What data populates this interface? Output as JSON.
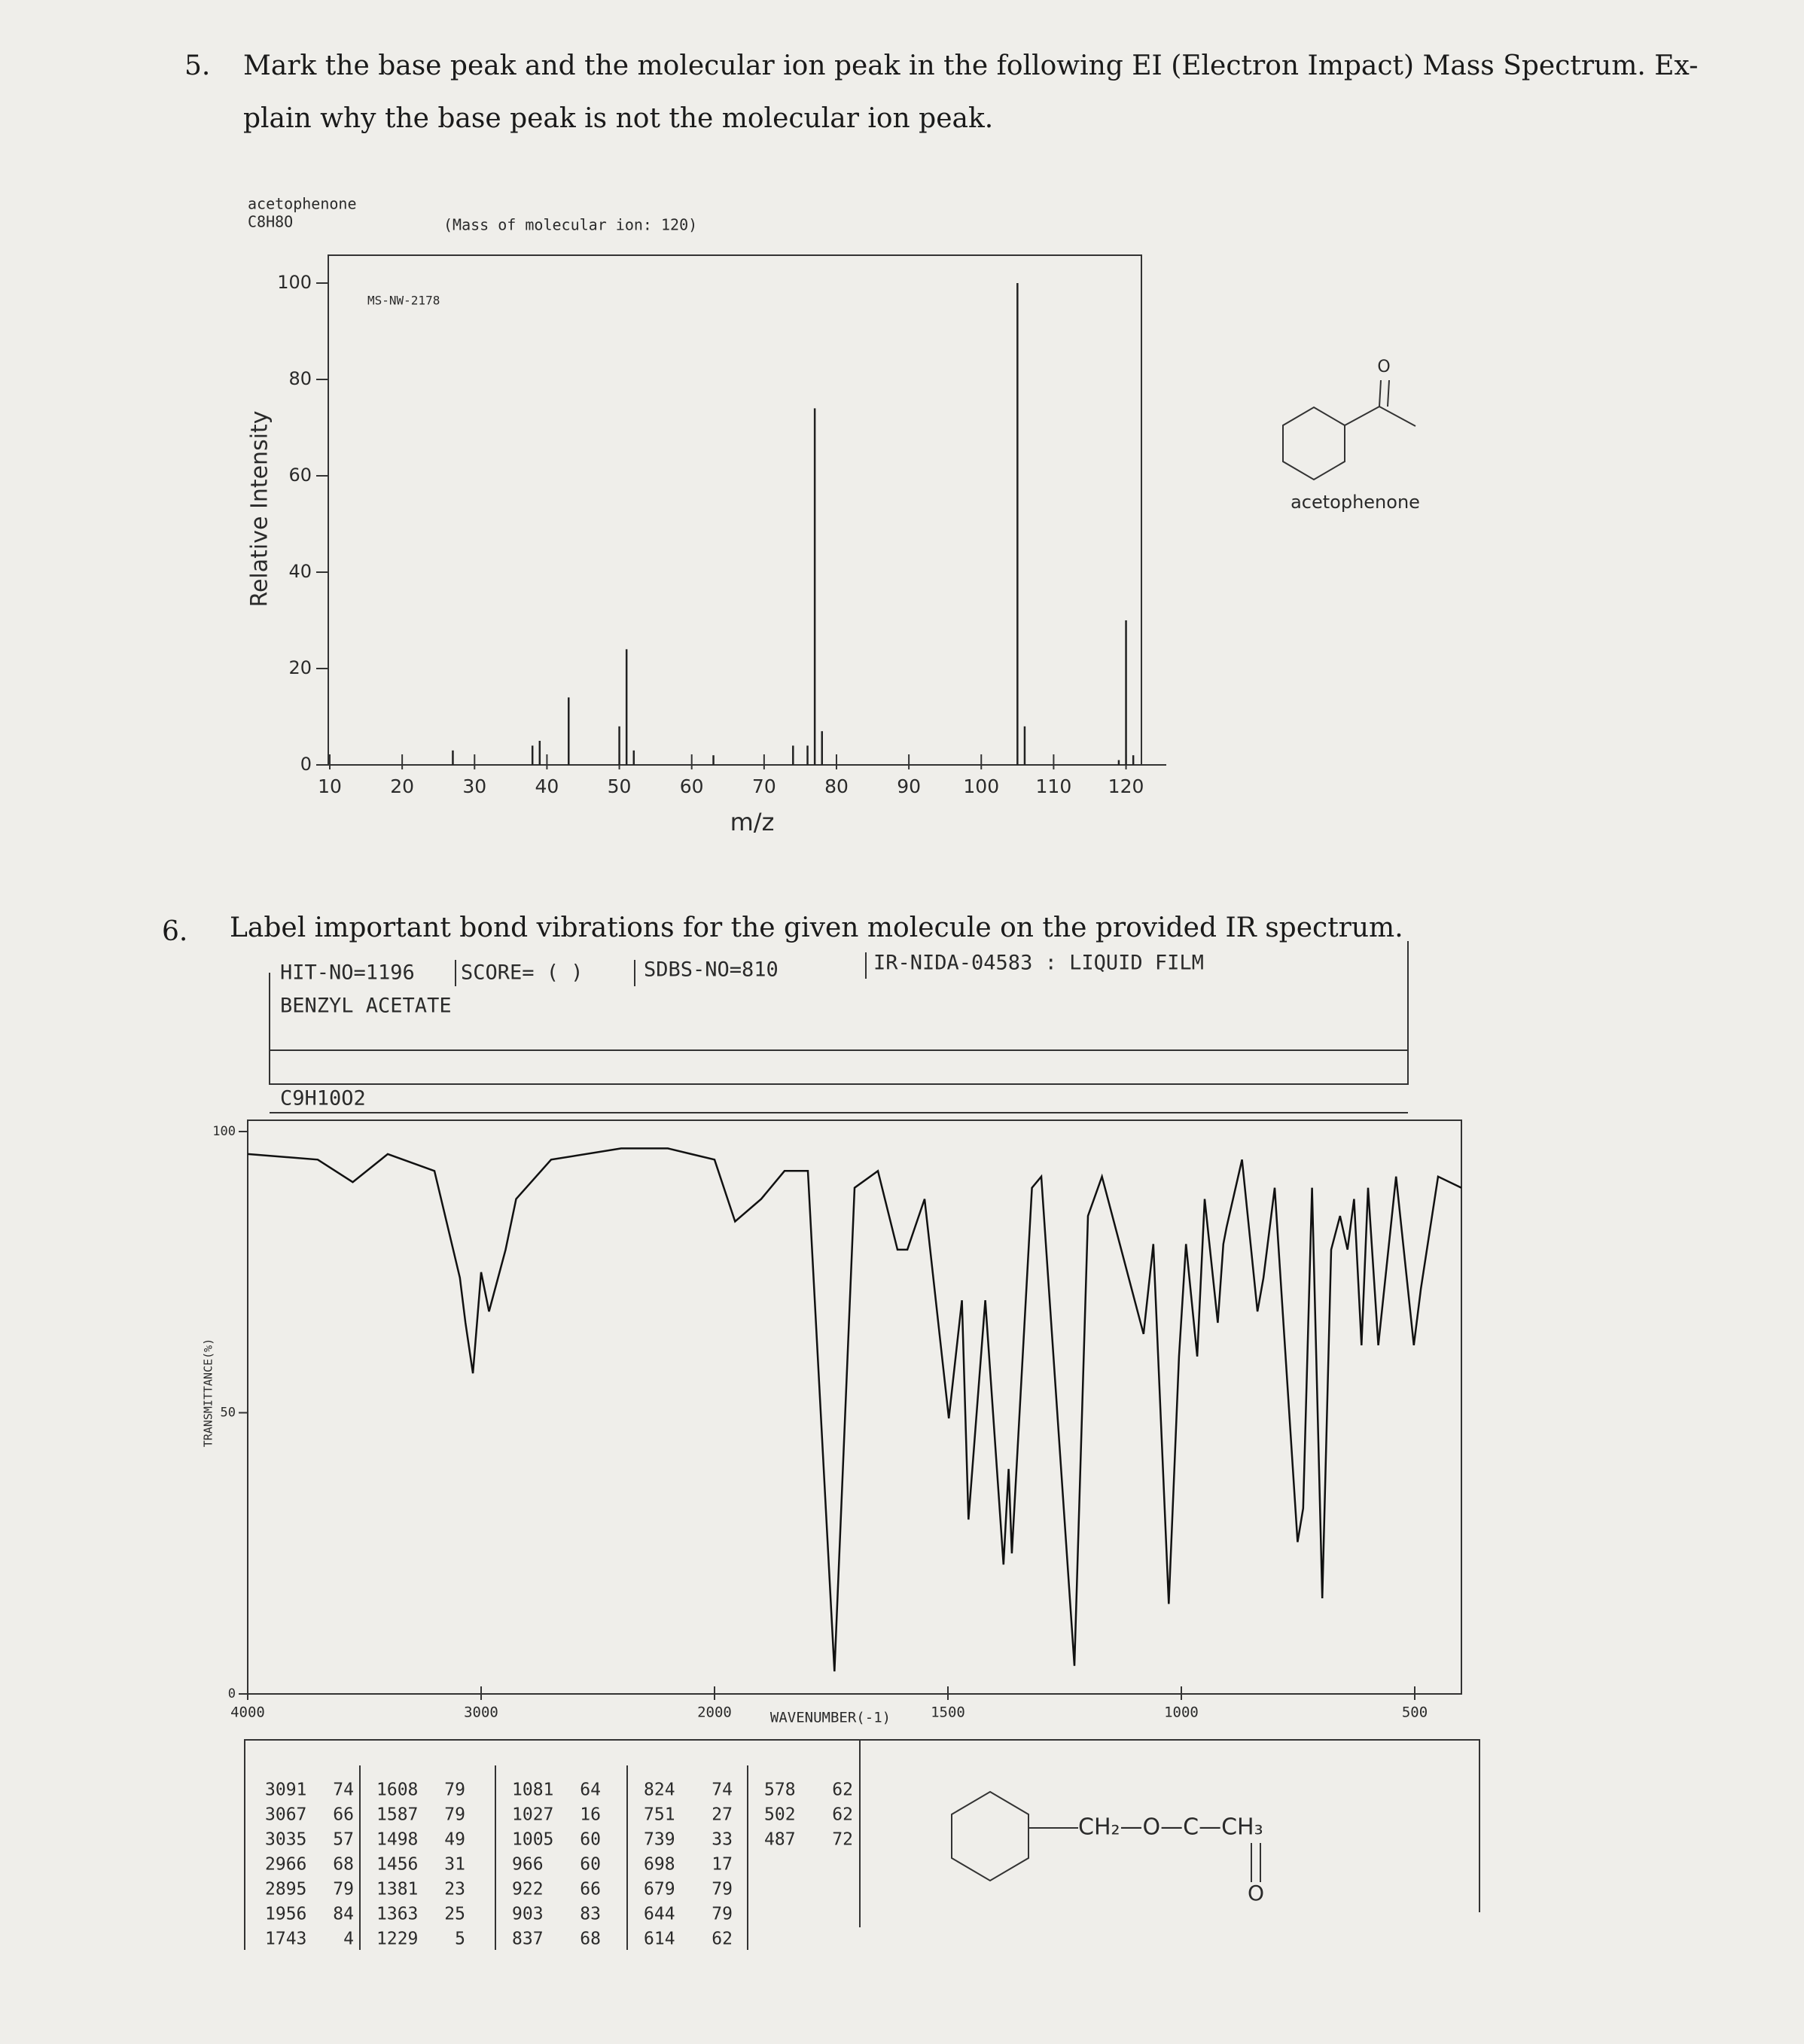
{
  "questions": [
    {
      "number": "5.",
      "lines": [
        "Mark the base peak and the molecular ion peak in the following EI (Electron Impact) Mass Spectrum. Ex-",
        "plain why the base peak is not the molecular ion peak."
      ]
    },
    {
      "number": "6.",
      "lines": [
        "Label important bond vibrations for the given molecule on the provided IR spectrum."
      ]
    }
  ],
  "ms_header": {
    "compound": "acetophenone",
    "formula": "C8H8O",
    "molecular_ion": "(Mass of molecular ion:   120)",
    "code": "MS-NW-2178"
  },
  "acetophenone_structure": {
    "oxygen": "O",
    "label": "acetophenone"
  },
  "ir_header": {
    "hit": "HIT-NO=1196",
    "score": "SCORE=  (    )",
    "sdbs": "SDBS-NO=810",
    "method": "IR-NIDA-04583 : LIQUID FILM",
    "name": "BENZYL ACETATE",
    "formula": "C9H10O2"
  },
  "peak_table": {
    "columns": [
      [
        [
          3091,
          74
        ],
        [
          3067,
          66
        ],
        [
          3035,
          57
        ],
        [
          2966,
          68
        ],
        [
          2895,
          79
        ],
        [
          1956,
          84
        ],
        [
          1743,
          4
        ]
      ],
      [
        [
          1608,
          79
        ],
        [
          1587,
          79
        ],
        [
          1498,
          49
        ],
        [
          1456,
          31
        ],
        [
          1381,
          23
        ],
        [
          1363,
          25
        ],
        [
          1229,
          5
        ]
      ],
      [
        [
          1081,
          64
        ],
        [
          1027,
          16
        ],
        [
          1005,
          60
        ],
        [
          966,
          60
        ],
        [
          922,
          66
        ],
        [
          903,
          83
        ],
        [
          837,
          68
        ]
      ],
      [
        [
          824,
          74
        ],
        [
          751,
          27
        ],
        [
          739,
          33
        ],
        [
          698,
          17
        ],
        [
          679,
          79
        ],
        [
          644,
          79
        ],
        [
          614,
          62
        ]
      ],
      [
        [
          578,
          62
        ],
        [
          502,
          62
        ],
        [
          487,
          72
        ]
      ]
    ]
  },
  "benzyl_acetate_structure": {
    "chain": "CH₂—O—C—CH₃",
    "oxygen": "O"
  },
  "chart_data": [
    {
      "type": "bar",
      "y_label": "Relative Intensity",
      "x_label": "m/z",
      "color": "#222222",
      "x": [
        27,
        38,
        39,
        43,
        50,
        51,
        52,
        63,
        74,
        76,
        77,
        78,
        105,
        106,
        119,
        120,
        121
      ],
      "values": [
        3,
        4,
        5,
        14,
        8,
        24,
        3,
        2,
        4,
        4,
        74,
        7,
        100,
        8,
        1,
        30,
        2
      ],
      "xlim": [
        10,
        124
      ],
      "ylim": [
        0,
        100
      ],
      "xticks": [
        10,
        20,
        30,
        40,
        50,
        60,
        70,
        80,
        90,
        100,
        110,
        120
      ],
      "yticks": [
        0,
        20,
        40,
        60,
        80,
        100
      ]
    },
    {
      "type": "line",
      "y_label": "TRANSMITTANCE(%)",
      "x_label": "WAVENUMBER(-1)",
      "color": "#111111",
      "x": [
        4000,
        3700,
        3550,
        3400,
        3200,
        3091,
        3067,
        3035,
        3000,
        2966,
        2895,
        2850,
        2700,
        2400,
        2200,
        2100,
        2000,
        1956,
        1900,
        1850,
        1800,
        1743,
        1700,
        1650,
        1608,
        1587,
        1550,
        1498,
        1470,
        1456,
        1420,
        1381,
        1370,
        1363,
        1320,
        1300,
        1229,
        1200,
        1170,
        1081,
        1060,
        1027,
        1005,
        990,
        966,
        950,
        922,
        910,
        903,
        870,
        837,
        824,
        800,
        751,
        739,
        720,
        698,
        679,
        660,
        644,
        630,
        614,
        600,
        578,
        540,
        502,
        487,
        450,
        400
      ],
      "values": [
        96,
        95,
        91,
        96,
        93,
        74,
        66,
        57,
        75,
        68,
        79,
        88,
        95,
        97,
        97,
        96,
        95,
        84,
        88,
        93,
        93,
        4,
        90,
        93,
        79,
        79,
        88,
        49,
        70,
        31,
        70,
        23,
        40,
        25,
        90,
        92,
        5,
        85,
        92,
        64,
        80,
        16,
        60,
        80,
        60,
        88,
        66,
        80,
        83,
        95,
        68,
        74,
        90,
        27,
        33,
        90,
        17,
        79,
        85,
        79,
        88,
        62,
        90,
        62,
        92,
        62,
        72,
        92,
        90
      ],
      "xlim": [
        4000,
        400
      ],
      "ylim": [
        0,
        100
      ],
      "xticks": [
        4000,
        3000,
        2000,
        1500,
        1000,
        500
      ],
      "yticks": [
        0,
        50,
        100
      ]
    }
  ]
}
